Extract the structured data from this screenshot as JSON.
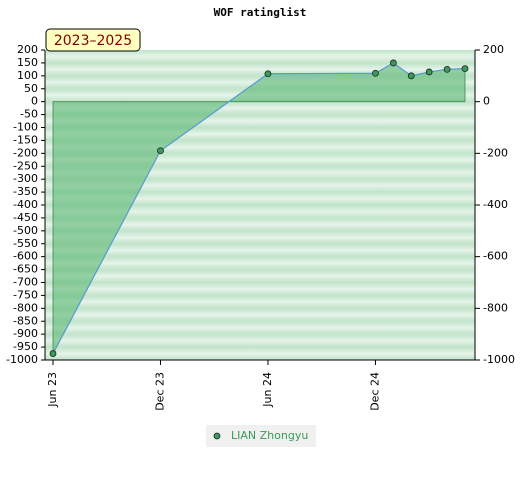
{
  "chart_data": {
    "type": "line",
    "title": "WOF ratinglist",
    "period_label": "2023–2025",
    "x": [
      "2023-06",
      "2023-12",
      "2024-06",
      "2024-12",
      "2025-01",
      "2025-02",
      "2025-03",
      "2025-04",
      "2025-05"
    ],
    "series": [
      {
        "name": "LIAN Zhongyu",
        "color": "#5b9bd5",
        "marker_color": "#3a9a5a",
        "fill": "#5cb874",
        "values": [
          -975,
          -190,
          108,
          110,
          150,
          100,
          115,
          125,
          128
        ]
      }
    ],
    "xlim": [
      "2023-06",
      "2025-05"
    ],
    "xticks": [
      {
        "value": "2023-06",
        "label": "Jun 23"
      },
      {
        "value": "2023-12",
        "label": "Dec 23"
      },
      {
        "value": "2024-06",
        "label": "Jun 24"
      },
      {
        "value": "2024-12",
        "label": "Dec 24"
      }
    ],
    "ylim": [
      -1000,
      200
    ],
    "yticks": [
      200,
      150,
      100,
      50,
      0,
      -50,
      -100,
      -150,
      -200,
      -250,
      -300,
      -350,
      -400,
      -450,
      -500,
      -550,
      -600,
      -650,
      -700,
      -750,
      -800,
      -850,
      -900,
      -950,
      -1000
    ],
    "y2lim": [
      -1000,
      200
    ],
    "y2ticks": [
      200,
      0,
      -200,
      -400,
      -600,
      -800,
      -1000
    ]
  }
}
